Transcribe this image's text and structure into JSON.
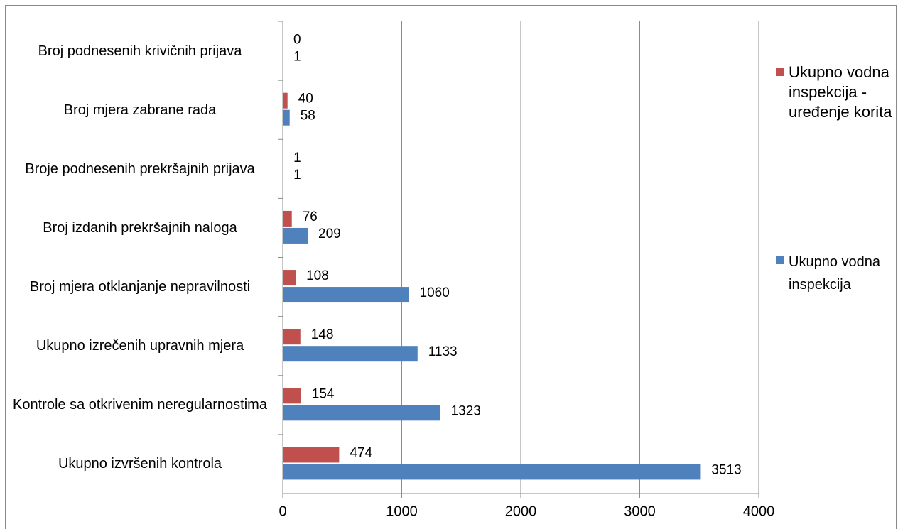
{
  "chart_data": {
    "type": "barh",
    "categories": [
      "Broj podnesenih krivičnih prijava",
      "Broj mjera zabrane rada",
      "Broje podnesenih prekršajnih prijava",
      "Broj izdanih prekršajnih naloga",
      "Broj mjera otklanjanje nepravilnosti",
      "Ukupno izrečenih upravnih mjera",
      "Kontrole sa otkrivenim neregularnostima",
      "Ukupno izvršenih kontrola"
    ],
    "series": [
      {
        "name": "Ukupno vodna inspekcija - uređenje korita",
        "color": "#c0504d",
        "values": [
          0,
          40,
          1,
          76,
          108,
          148,
          154,
          474
        ]
      },
      {
        "name": "Ukupno vodna inspekcija",
        "color": "#4f81bd",
        "values": [
          1,
          58,
          1,
          209,
          1060,
          1133,
          1323,
          3513
        ]
      }
    ],
    "xlim": [
      0,
      4000
    ],
    "xticks": [
      0,
      1000,
      2000,
      3000,
      4000
    ],
    "grid": true,
    "legend": "right"
  }
}
